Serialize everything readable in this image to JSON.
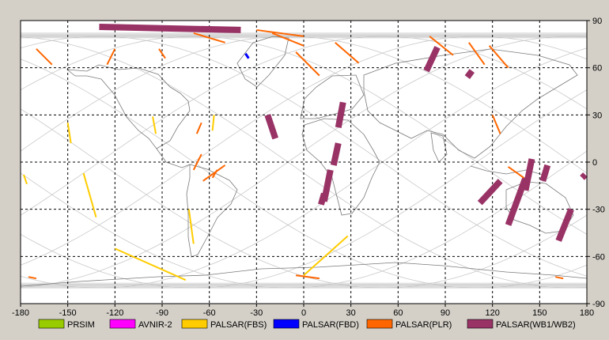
{
  "map": {
    "extent": {
      "lon": [
        -180,
        180
      ],
      "lat": [
        -90,
        90
      ]
    },
    "grid_step_deg": 30,
    "gridlines": "dashed",
    "background": "#ffffff",
    "coastline_color": "#7a7a7a",
    "orbit_track_color": "#c8c8c8",
    "x_ticks": [
      "-180",
      "-150",
      "-120",
      "-90",
      "-60",
      "-30",
      "0",
      "30",
      "60",
      "90",
      "120",
      "150",
      "180"
    ],
    "y_ticks": [
      "90",
      "60",
      "30",
      "0",
      "-30",
      "-60",
      "-90"
    ]
  },
  "legend": [
    {
      "label": "PRSIM",
      "color": "#99cc00"
    },
    {
      "label": "AVNIR-2",
      "color": "#ff00ff"
    },
    {
      "label": "PALSAR(FBS)",
      "color": "#ffcc00"
    },
    {
      "label": "PALSAR(FBD)",
      "color": "#0000ff"
    },
    {
      "label": "PALSAR(PLR)",
      "color": "#ff6600"
    },
    {
      "label": "PALSAR(WB1/WB2)",
      "color": "#993366"
    }
  ],
  "observations": {
    "wb": [
      {
        "lon": [
          -130,
          -40
        ],
        "lat": [
          86,
          84
        ]
      },
      {
        "lon": [
          -23,
          -18
        ],
        "lat": [
          30,
          15
        ]
      },
      {
        "lon": [
          25,
          22
        ],
        "lat": [
          38,
          22
        ]
      },
      {
        "lon": [
          22,
          19
        ],
        "lat": [
          12,
          -2
        ]
      },
      {
        "lon": [
          17,
          13
        ],
        "lat": [
          -5,
          -25
        ]
      },
      {
        "lon": [
          13,
          11
        ],
        "lat": [
          -20,
          -27
        ]
      },
      {
        "lon": [
          85,
          78
        ],
        "lat": [
          73,
          58
        ]
      },
      {
        "lon": [
          107,
          104
        ],
        "lat": [
          58,
          54
        ]
      },
      {
        "lon": [
          145,
          141
        ],
        "lat": [
          2,
          -18
        ]
      },
      {
        "lon": [
          141,
          130
        ],
        "lat": [
          -10,
          -40
        ]
      },
      {
        "lon": [
          155,
          152
        ],
        "lat": [
          -2,
          -12
        ]
      },
      {
        "lon": [
          170,
          162
        ],
        "lat": [
          -30,
          -50
        ]
      },
      {
        "lon": [
          179,
          177
        ],
        "lat": [
          -8,
          -10
        ]
      },
      {
        "lon": [
          125,
          112
        ],
        "lat": [
          -12,
          -26
        ]
      }
    ],
    "fbs": [
      {
        "lon": [
          -150,
          -148
        ],
        "lat": [
          25,
          12
        ]
      },
      {
        "lon": [
          -140,
          -132
        ],
        "lat": [
          -7,
          -35
        ]
      },
      {
        "lon": [
          -120,
          -75
        ],
        "lat": [
          -55,
          -75
        ]
      },
      {
        "lon": [
          -96,
          -94
        ],
        "lat": [
          29,
          18
        ]
      },
      {
        "lon": [
          -73,
          -70
        ],
        "lat": [
          -30,
          -52
        ]
      },
      {
        "lon": [
          28,
          0
        ],
        "lat": [
          -47,
          -72
        ]
      },
      {
        "lon": [
          -57,
          -58
        ],
        "lat": [
          30,
          20
        ]
      },
      {
        "lon": [
          -178,
          -176
        ],
        "lat": [
          -8,
          -14
        ]
      }
    ],
    "plr": [
      {
        "lon": [
          -170,
          -160
        ],
        "lat": [
          72,
          62
        ]
      },
      {
        "lon": [
          -120,
          -125
        ],
        "lat": [
          72,
          62
        ]
      },
      {
        "lon": [
          -92,
          -88
        ],
        "lat": [
          72,
          66
        ]
      },
      {
        "lon": [
          -70,
          -50
        ],
        "lat": [
          82,
          76
        ]
      },
      {
        "lon": [
          -20,
          0
        ],
        "lat": [
          82,
          74
        ]
      },
      {
        "lon": [
          20,
          35
        ],
        "lat": [
          76,
          63
        ]
      },
      {
        "lon": [
          -5,
          10
        ],
        "lat": [
          70,
          55
        ]
      },
      {
        "lon": [
          80,
          95
        ],
        "lat": [
          80,
          68
        ]
      },
      {
        "lon": [
          105,
          115
        ],
        "lat": [
          76,
          62
        ]
      },
      {
        "lon": [
          118,
          130
        ],
        "lat": [
          74,
          60
        ]
      },
      {
        "lon": [
          -30,
          0
        ],
        "lat": [
          84,
          80
        ]
      },
      {
        "lon": [
          -50,
          -64
        ],
        "lat": [
          -2,
          -12
        ]
      },
      {
        "lon": [
          -55,
          -58
        ],
        "lat": [
          -5,
          -10
        ]
      },
      {
        "lon": [
          -65,
          -70
        ],
        "lat": [
          5,
          -5
        ]
      },
      {
        "lon": [
          -65,
          -68
        ],
        "lat": [
          25,
          18
        ]
      },
      {
        "lon": [
          120,
          125
        ],
        "lat": [
          30,
          18
        ]
      },
      {
        "lon": [
          -5,
          10
        ],
        "lat": [
          -72,
          -74
        ]
      },
      {
        "lon": [
          160,
          165
        ],
        "lat": [
          -73,
          -74
        ]
      },
      {
        "lon": [
          -175,
          -170
        ],
        "lat": [
          -73,
          -74
        ]
      },
      {
        "lon": [
          130,
          140
        ],
        "lat": [
          -3,
          -10
        ]
      }
    ],
    "fbd": [
      {
        "lon": [
          -37,
          -35
        ],
        "lat": [
          69,
          66
        ]
      }
    ]
  }
}
